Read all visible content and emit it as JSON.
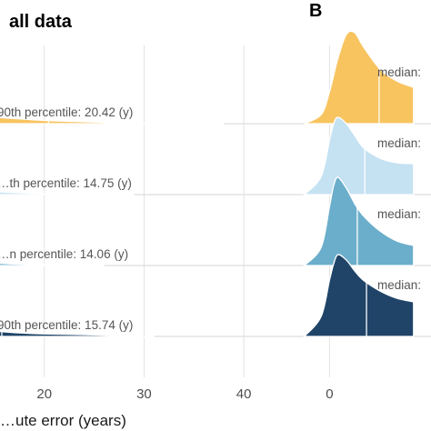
{
  "chart_data": [
    {
      "panel_label": "",
      "title": "all data",
      "type": "area",
      "subtype": "ridgeline-density",
      "xlabel": "…ute error (years)",
      "xlim": [
        11,
        45
      ],
      "xticks": [
        20,
        30,
        40
      ],
      "tick_labels": [
        "20",
        "30",
        "40"
      ],
      "grid": true,
      "series": [
        {
          "color": "#F8C460",
          "percentile_label": "90th percentile: 20.42 (y)",
          "percentile_value": 20.42,
          "density": {
            "x": [
              11,
              14,
              17,
              20,
              23,
              26,
              29,
              32,
              35,
              38
            ],
            "y": [
              0.2,
              0.12,
              0.08,
              0.05,
              0.035,
              0.02,
              0.012,
              0.006,
              0.003,
              0.0
            ]
          }
        },
        {
          "color": "#C5E2F2",
          "percentile_label": "…th percentile: 14.75 (y)",
          "percentile_value": 14.75,
          "density": {
            "x": [
              11,
              14,
              17,
              20,
              23,
              26,
              29
            ],
            "y": [
              0.12,
              0.06,
              0.03,
              0.015,
              0.008,
              0.004,
              0.0
            ]
          }
        },
        {
          "color": "#6BAECB",
          "percentile_label": "…n percentile: 14.06 (y)",
          "percentile_value": 14.06,
          "density": {
            "x": [
              11,
              14,
              17,
              20,
              23,
              26
            ],
            "y": [
              0.1,
              0.05,
              0.025,
              0.012,
              0.005,
              0.0
            ]
          }
        },
        {
          "color": "#1F4468",
          "percentile_label": "90th percentile: 15.74 (y)",
          "percentile_value": 15.74,
          "density": {
            "x": [
              11,
              14,
              17,
              20,
              23,
              26,
              29,
              31
            ],
            "y": [
              0.16,
              0.1,
              0.06,
              0.04,
              0.03,
              0.02,
              0.01,
              0.0
            ]
          }
        }
      ]
    },
    {
      "panel_label": "B",
      "title": "",
      "type": "area",
      "subtype": "ridgeline-density",
      "xlim": [
        -6,
        15
      ],
      "xticks": [
        0
      ],
      "tick_labels": [
        "0"
      ],
      "grid": true,
      "series": [
        {
          "color": "#F8C460",
          "median_label": "median:",
          "median_value": 5.9,
          "density": {
            "x": [
              -3,
              -1,
              0,
              1,
              2,
              3,
              4,
              6,
              8,
              10
            ],
            "y": [
              0.0,
              0.1,
              0.35,
              0.72,
              0.98,
              1.0,
              0.85,
              0.6,
              0.47,
              0.4
            ]
          }
        },
        {
          "color": "#C5E2F2",
          "median_label": "median:",
          "median_value": 4.2,
          "density": {
            "x": [
              -3,
              -1,
              0,
              0.5,
              1,
              2,
              3,
              4,
              6,
              8,
              10
            ],
            "y": [
              0.0,
              0.2,
              0.6,
              0.78,
              0.85,
              0.78,
              0.65,
              0.52,
              0.4,
              0.35,
              0.34
            ]
          }
        },
        {
          "color": "#6BAECB",
          "median_label": "median:",
          "median_value": 3.3,
          "density": {
            "x": [
              -3,
              -1,
              0,
              0.5,
              1,
              2,
              3,
              4,
              6,
              8,
              10
            ],
            "y": [
              0.0,
              0.2,
              0.65,
              0.88,
              0.97,
              0.85,
              0.68,
              0.55,
              0.38,
              0.27,
              0.22
            ]
          }
        },
        {
          "color": "#1F4468",
          "median_label": "median:",
          "median_value": 4.4,
          "density": {
            "x": [
              -3,
              -1,
              0,
              0.5,
              1,
              2,
              3,
              4,
              6,
              8,
              10
            ],
            "y": [
              0.0,
              0.22,
              0.62,
              0.8,
              0.9,
              0.84,
              0.72,
              0.62,
              0.5,
              0.42,
              0.38
            ]
          }
        }
      ]
    }
  ]
}
